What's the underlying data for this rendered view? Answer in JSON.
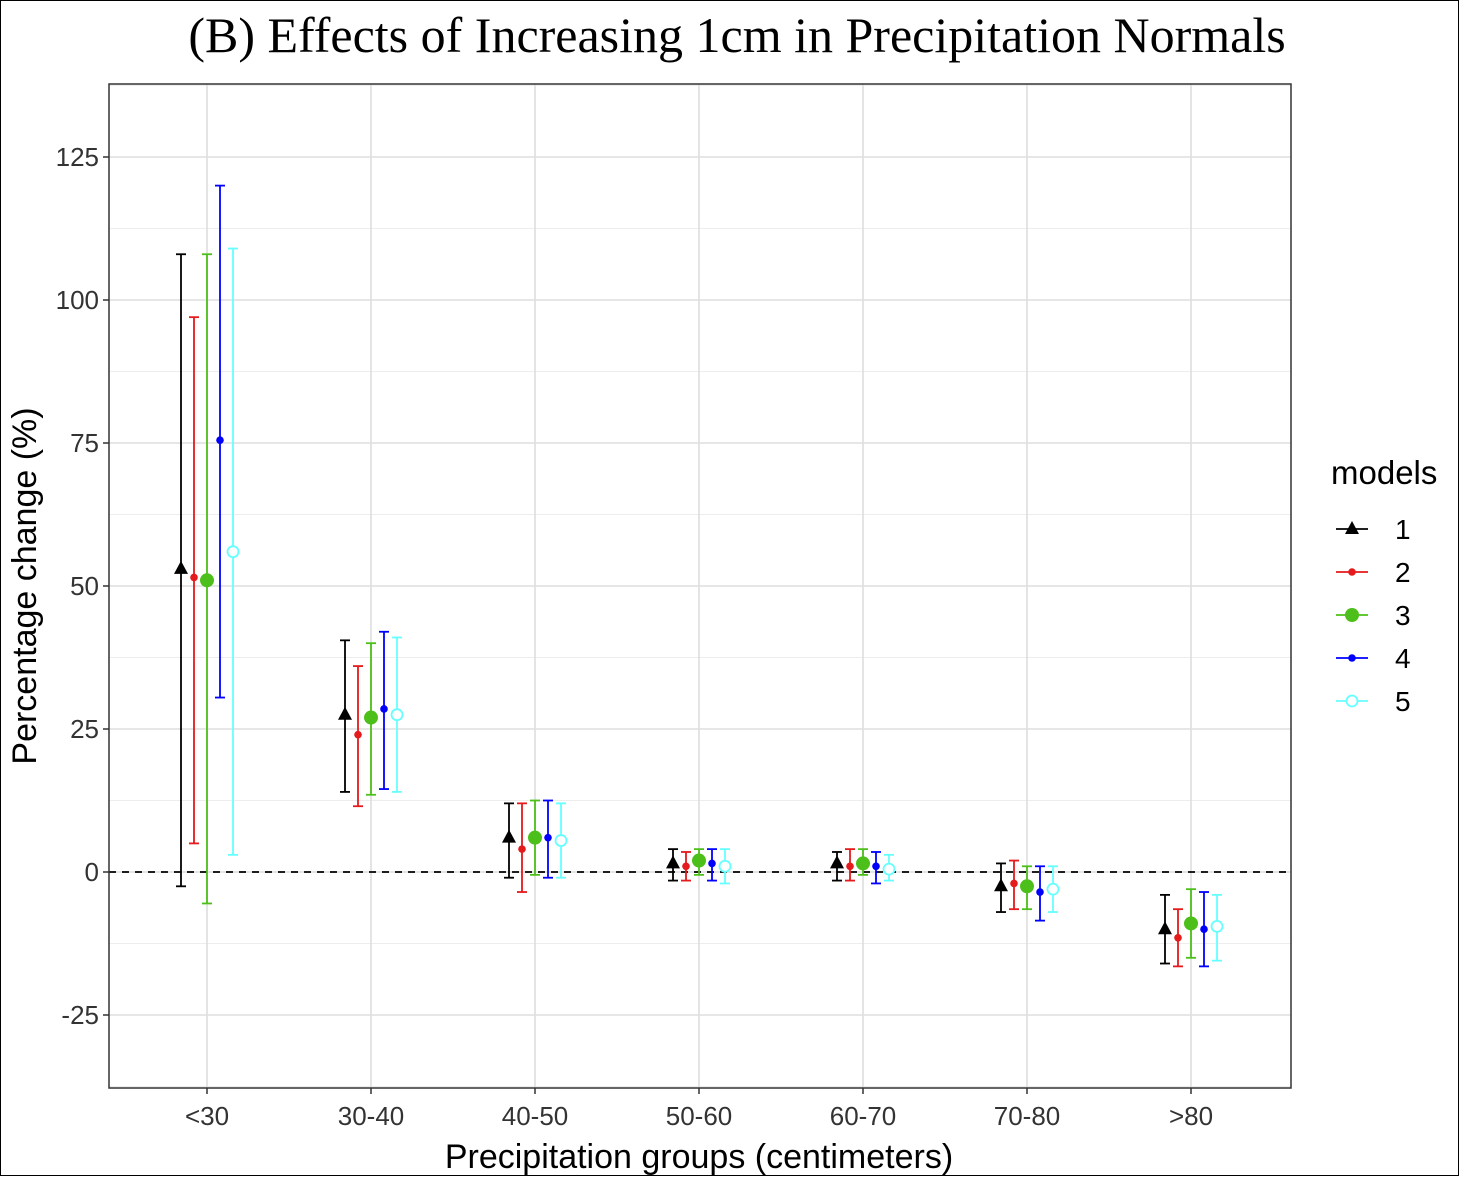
{
  "chart_data": {
    "type": "scatter",
    "subtype": "point-range (estimate with error bars)",
    "title": "(B) Effects of Increasing 1cm in Precipitation Normals",
    "xlabel": "Precipitation groups (centimeters)",
    "ylabel": "Percentage change (%)",
    "categories": [
      "<30",
      "30-40",
      "40-50",
      "50-60",
      "60-70",
      "70-80",
      ">80"
    ],
    "ylim": [
      -37,
      138
    ],
    "yticks": [
      -25,
      0,
      25,
      50,
      75,
      100,
      125
    ],
    "ytick_labels": [
      "-25",
      "0",
      "25",
      "50",
      "75",
      "100",
      "125"
    ],
    "reference_line": {
      "y": 0,
      "style": "dashed",
      "color": "#000000"
    },
    "grid": true,
    "legend": {
      "title": "models",
      "position": "right"
    },
    "series": [
      {
        "name": "1",
        "color": "#000000",
        "marker": "triangle",
        "estimate": [
          53,
          27.5,
          6,
          1.5,
          1.5,
          -2.5,
          -10
        ],
        "lower": [
          -2.5,
          14,
          -1,
          -1.5,
          -1.5,
          -7,
          -16
        ],
        "upper": [
          108,
          40.5,
          12,
          4,
          3.5,
          1.5,
          -4
        ]
      },
      {
        "name": "2",
        "color": "#e41a1c",
        "marker": "small-dot",
        "estimate": [
          51.5,
          24,
          4,
          1,
          1,
          -2,
          -11.5
        ],
        "lower": [
          5,
          11.5,
          -3.5,
          -1.5,
          -1.5,
          -6.5,
          -16.5
        ],
        "upper": [
          97,
          36,
          12,
          3.5,
          4,
          2,
          -6.5
        ]
      },
      {
        "name": "3",
        "color": "#4dbf1a",
        "marker": "large-dot",
        "estimate": [
          51,
          27,
          6,
          2,
          1.5,
          -2.5,
          -9
        ],
        "lower": [
          -5.5,
          13.5,
          -0.5,
          -0.5,
          -0.5,
          -6.5,
          -15
        ],
        "upper": [
          108,
          40,
          12.5,
          4,
          4,
          1,
          -3
        ]
      },
      {
        "name": "4",
        "color": "#0000ff",
        "marker": "small-dot",
        "estimate": [
          75.5,
          28.5,
          6,
          1.5,
          1,
          -3.5,
          -10
        ],
        "lower": [
          30.5,
          14.5,
          -1,
          -1.5,
          -2,
          -8.5,
          -16.5
        ],
        "upper": [
          120,
          42,
          12.5,
          4,
          3.5,
          1,
          -3.5
        ]
      },
      {
        "name": "5",
        "color": "#66ffff",
        "marker": "open-circle",
        "estimate": [
          56,
          27.5,
          5.5,
          1,
          0.5,
          -3,
          -9.5
        ],
        "lower": [
          3,
          14,
          -1,
          -2,
          -1.5,
          -7,
          -15.5
        ],
        "upper": [
          109,
          41,
          12,
          4,
          3,
          1,
          -4
        ]
      }
    ]
  }
}
